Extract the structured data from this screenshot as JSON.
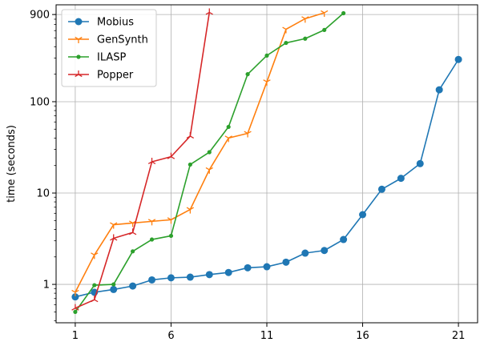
{
  "chart_data": {
    "type": "line",
    "title": "",
    "xlabel": "",
    "ylabel": "time (seconds)",
    "y_scale": "log",
    "xlim": [
      0.0,
      22.0
    ],
    "ylim": [
      0.38,
      1150
    ],
    "grid": true,
    "legend_position": "top-left",
    "x_ticks": [
      1,
      6,
      11,
      16,
      21
    ],
    "x_tick_labels": [
      "1",
      "6",
      "11",
      "16",
      "21"
    ],
    "y_ticks": [
      1,
      10,
      100,
      900
    ],
    "y_tick_labels": [
      "1",
      "10",
      "100",
      "900"
    ],
    "series": [
      {
        "name": "Mobius",
        "color": "#1f77b4",
        "marker": "circle",
        "x": [
          1,
          2,
          3,
          4,
          5,
          6,
          7,
          8,
          9,
          10,
          11,
          12,
          13,
          14,
          15,
          16,
          17,
          18,
          19,
          20,
          21
        ],
        "y": [
          0.73,
          0.82,
          0.88,
          0.96,
          1.12,
          1.18,
          1.2,
          1.28,
          1.35,
          1.52,
          1.56,
          1.75,
          2.2,
          2.35,
          3.1,
          5.8,
          11,
          14.5,
          21,
          135,
          290
        ]
      },
      {
        "name": "GenSynth",
        "color": "#ff7f0e",
        "marker": "tri_down",
        "x": [
          1,
          2,
          3,
          4,
          5,
          6,
          7,
          8,
          9,
          10,
          11,
          12,
          13,
          14
        ],
        "y": [
          0.82,
          2.1,
          4.5,
          4.7,
          4.9,
          5.1,
          6.6,
          18,
          40,
          45,
          165,
          620,
          810,
          940
        ]
      },
      {
        "name": "ILASP",
        "color": "#2ca02c",
        "marker": "point",
        "x": [
          1,
          2,
          3,
          4,
          5,
          6,
          7,
          8,
          9,
          10,
          11,
          12,
          13,
          14,
          15
        ],
        "y": [
          0.5,
          0.98,
          1.0,
          2.3,
          3.1,
          3.4,
          20.5,
          28,
          53,
          200,
          320,
          440,
          490,
          610,
          930
        ]
      },
      {
        "name": "Popper",
        "color": "#d62728",
        "marker": "tri_up",
        "x": [
          1,
          2,
          3,
          4,
          5,
          6,
          7,
          8
        ],
        "y": [
          0.55,
          0.68,
          3.2,
          3.7,
          22,
          25,
          42,
          950
        ]
      }
    ]
  }
}
